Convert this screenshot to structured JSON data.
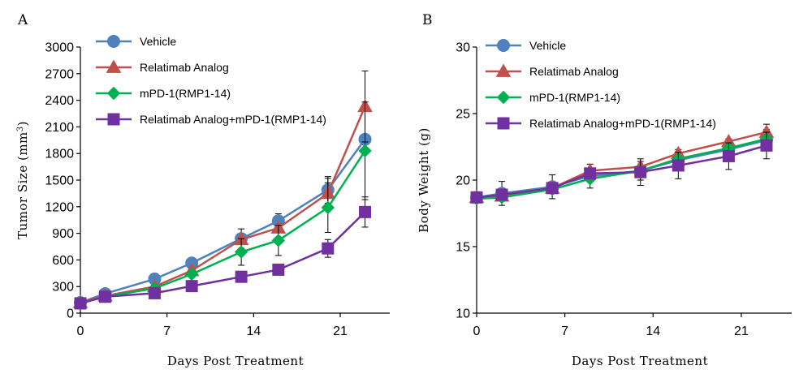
{
  "chart_data": [
    {
      "panel": "A",
      "type": "line",
      "title": "",
      "xlabel": "Days Post Treatment",
      "ylabel": "Tumor Size (mm³)",
      "ylabel_main": "Tumor Size (mm",
      "ylabel_sup": "3",
      "ylabel_end": ")",
      "xlim": [
        0,
        25
      ],
      "ylim": [
        0,
        3000
      ],
      "xticks": [
        0,
        7,
        14,
        21
      ],
      "yticks": [
        0,
        300,
        600,
        900,
        1200,
        1500,
        1800,
        2100,
        2400,
        2700,
        3000
      ],
      "grid": false,
      "legend_position": "top-left",
      "x": [
        0,
        2,
        6,
        9,
        13,
        16,
        20,
        23
      ],
      "series": [
        {
          "name": "Vehicle",
          "color": "#4f81bd",
          "marker": "circle",
          "values": [
            120,
            220,
            385,
            565,
            840,
            1040,
            1390,
            1960
          ],
          "errors": [
            0,
            0,
            0,
            0,
            110,
            80,
            150,
            0
          ]
        },
        {
          "name": "Relatimab Analog",
          "color": "#c0504d",
          "marker": "triangle",
          "values": [
            120,
            195,
            300,
            480,
            830,
            960,
            1350,
            2330
          ],
          "errors": [
            0,
            0,
            0,
            0,
            0,
            0,
            170,
            400
          ]
        },
        {
          "name": "mPD-1(RMP1-14)",
          "color": "#00b050",
          "marker": "diamond",
          "values": [
            115,
            185,
            280,
            440,
            690,
            820,
            1190,
            1830
          ],
          "errors": [
            0,
            0,
            0,
            0,
            150,
            170,
            280,
            550
          ]
        },
        {
          "name": "Relatimab Analog+mPD-1(RMP1-14)",
          "color": "#7030a0",
          "marker": "square",
          "values": [
            110,
            185,
            225,
            305,
            410,
            490,
            730,
            1140
          ],
          "errors": [
            0,
            0,
            0,
            0,
            0,
            0,
            100,
            170
          ]
        }
      ]
    },
    {
      "panel": "B",
      "type": "line",
      "title": "",
      "xlabel": "Days Post Treatment",
      "ylabel": "Body Weight (g)",
      "xlim": [
        0,
        25
      ],
      "ylim": [
        10,
        30
      ],
      "xticks": [
        0,
        7,
        14,
        21
      ],
      "yticks": [
        10,
        15,
        20,
        25,
        30
      ],
      "grid": false,
      "legend_position": "top-left",
      "x": [
        0,
        2,
        6,
        9,
        13,
        16,
        20,
        23
      ],
      "series": [
        {
          "name": "Vehicle",
          "color": "#4f81bd",
          "marker": "circle",
          "values": [
            18.7,
            19.0,
            19.5,
            20.3,
            20.7,
            21.5,
            22.3,
            23.0
          ],
          "errors": [
            0.4,
            0.9,
            0.9,
            0.9,
            0.7,
            0.8,
            0.8,
            0.8
          ]
        },
        {
          "name": "Relatimab Analog",
          "color": "#c0504d",
          "marker": "triangle",
          "values": [
            18.7,
            18.8,
            19.4,
            20.7,
            21.0,
            22.0,
            22.9,
            23.6
          ],
          "errors": [
            0,
            0,
            0,
            0,
            0,
            0,
            0,
            0.6
          ]
        },
        {
          "name": "mPD-1(RMP1-14)",
          "color": "#00b050",
          "marker": "diamond",
          "values": [
            18.6,
            18.7,
            19.3,
            20.1,
            20.7,
            21.6,
            22.4,
            23.1
          ],
          "errors": [
            0,
            0,
            0,
            0,
            0,
            0,
            0,
            0
          ]
        },
        {
          "name": "Relatimab Analog+mPD-1(RMP1-14)",
          "color": "#7030a0",
          "marker": "square",
          "values": [
            18.7,
            18.9,
            19.4,
            20.5,
            20.6,
            21.1,
            21.8,
            22.6
          ],
          "errors": [
            0,
            0,
            0,
            0,
            1.0,
            1.0,
            1.0,
            1.0
          ]
        }
      ]
    }
  ]
}
